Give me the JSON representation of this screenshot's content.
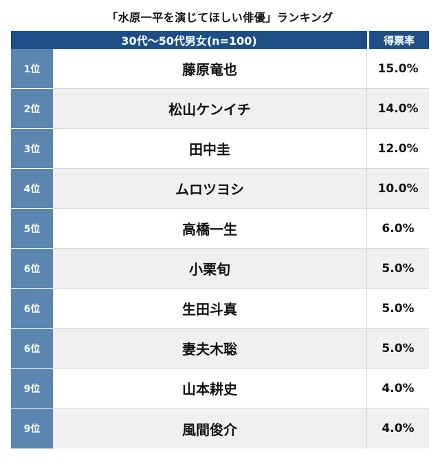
{
  "title": "「水原一平を演じてほしい俳優」ランキング",
  "header": {
    "group": "30代〜50代男女(n=100)",
    "rate": "得票率"
  },
  "rows": [
    {
      "rank": "1位",
      "name": "藤原竜也",
      "rate": "15.0%"
    },
    {
      "rank": "2位",
      "name": "松山ケンイチ",
      "rate": "14.0%"
    },
    {
      "rank": "3位",
      "name": "田中圭",
      "rate": "12.0%"
    },
    {
      "rank": "4位",
      "name": "ムロツヨシ",
      "rate": "10.0%"
    },
    {
      "rank": "5位",
      "name": "高橋一生",
      "rate": "6.0%"
    },
    {
      "rank": "6位",
      "name": "小栗旬",
      "rate": "5.0%"
    },
    {
      "rank": "6位",
      "name": "生田斗真",
      "rate": "5.0%"
    },
    {
      "rank": "6位",
      "name": "妻夫木聡",
      "rate": "5.0%"
    },
    {
      "rank": "9位",
      "name": "山本耕史",
      "rate": "4.0%"
    },
    {
      "rank": "9位",
      "name": "風間俊介",
      "rate": "4.0%"
    }
  ],
  "colors": {
    "header": "#1d4f86",
    "rank_cell": "#5a86b0",
    "row_alt": "#f0f0f0"
  }
}
